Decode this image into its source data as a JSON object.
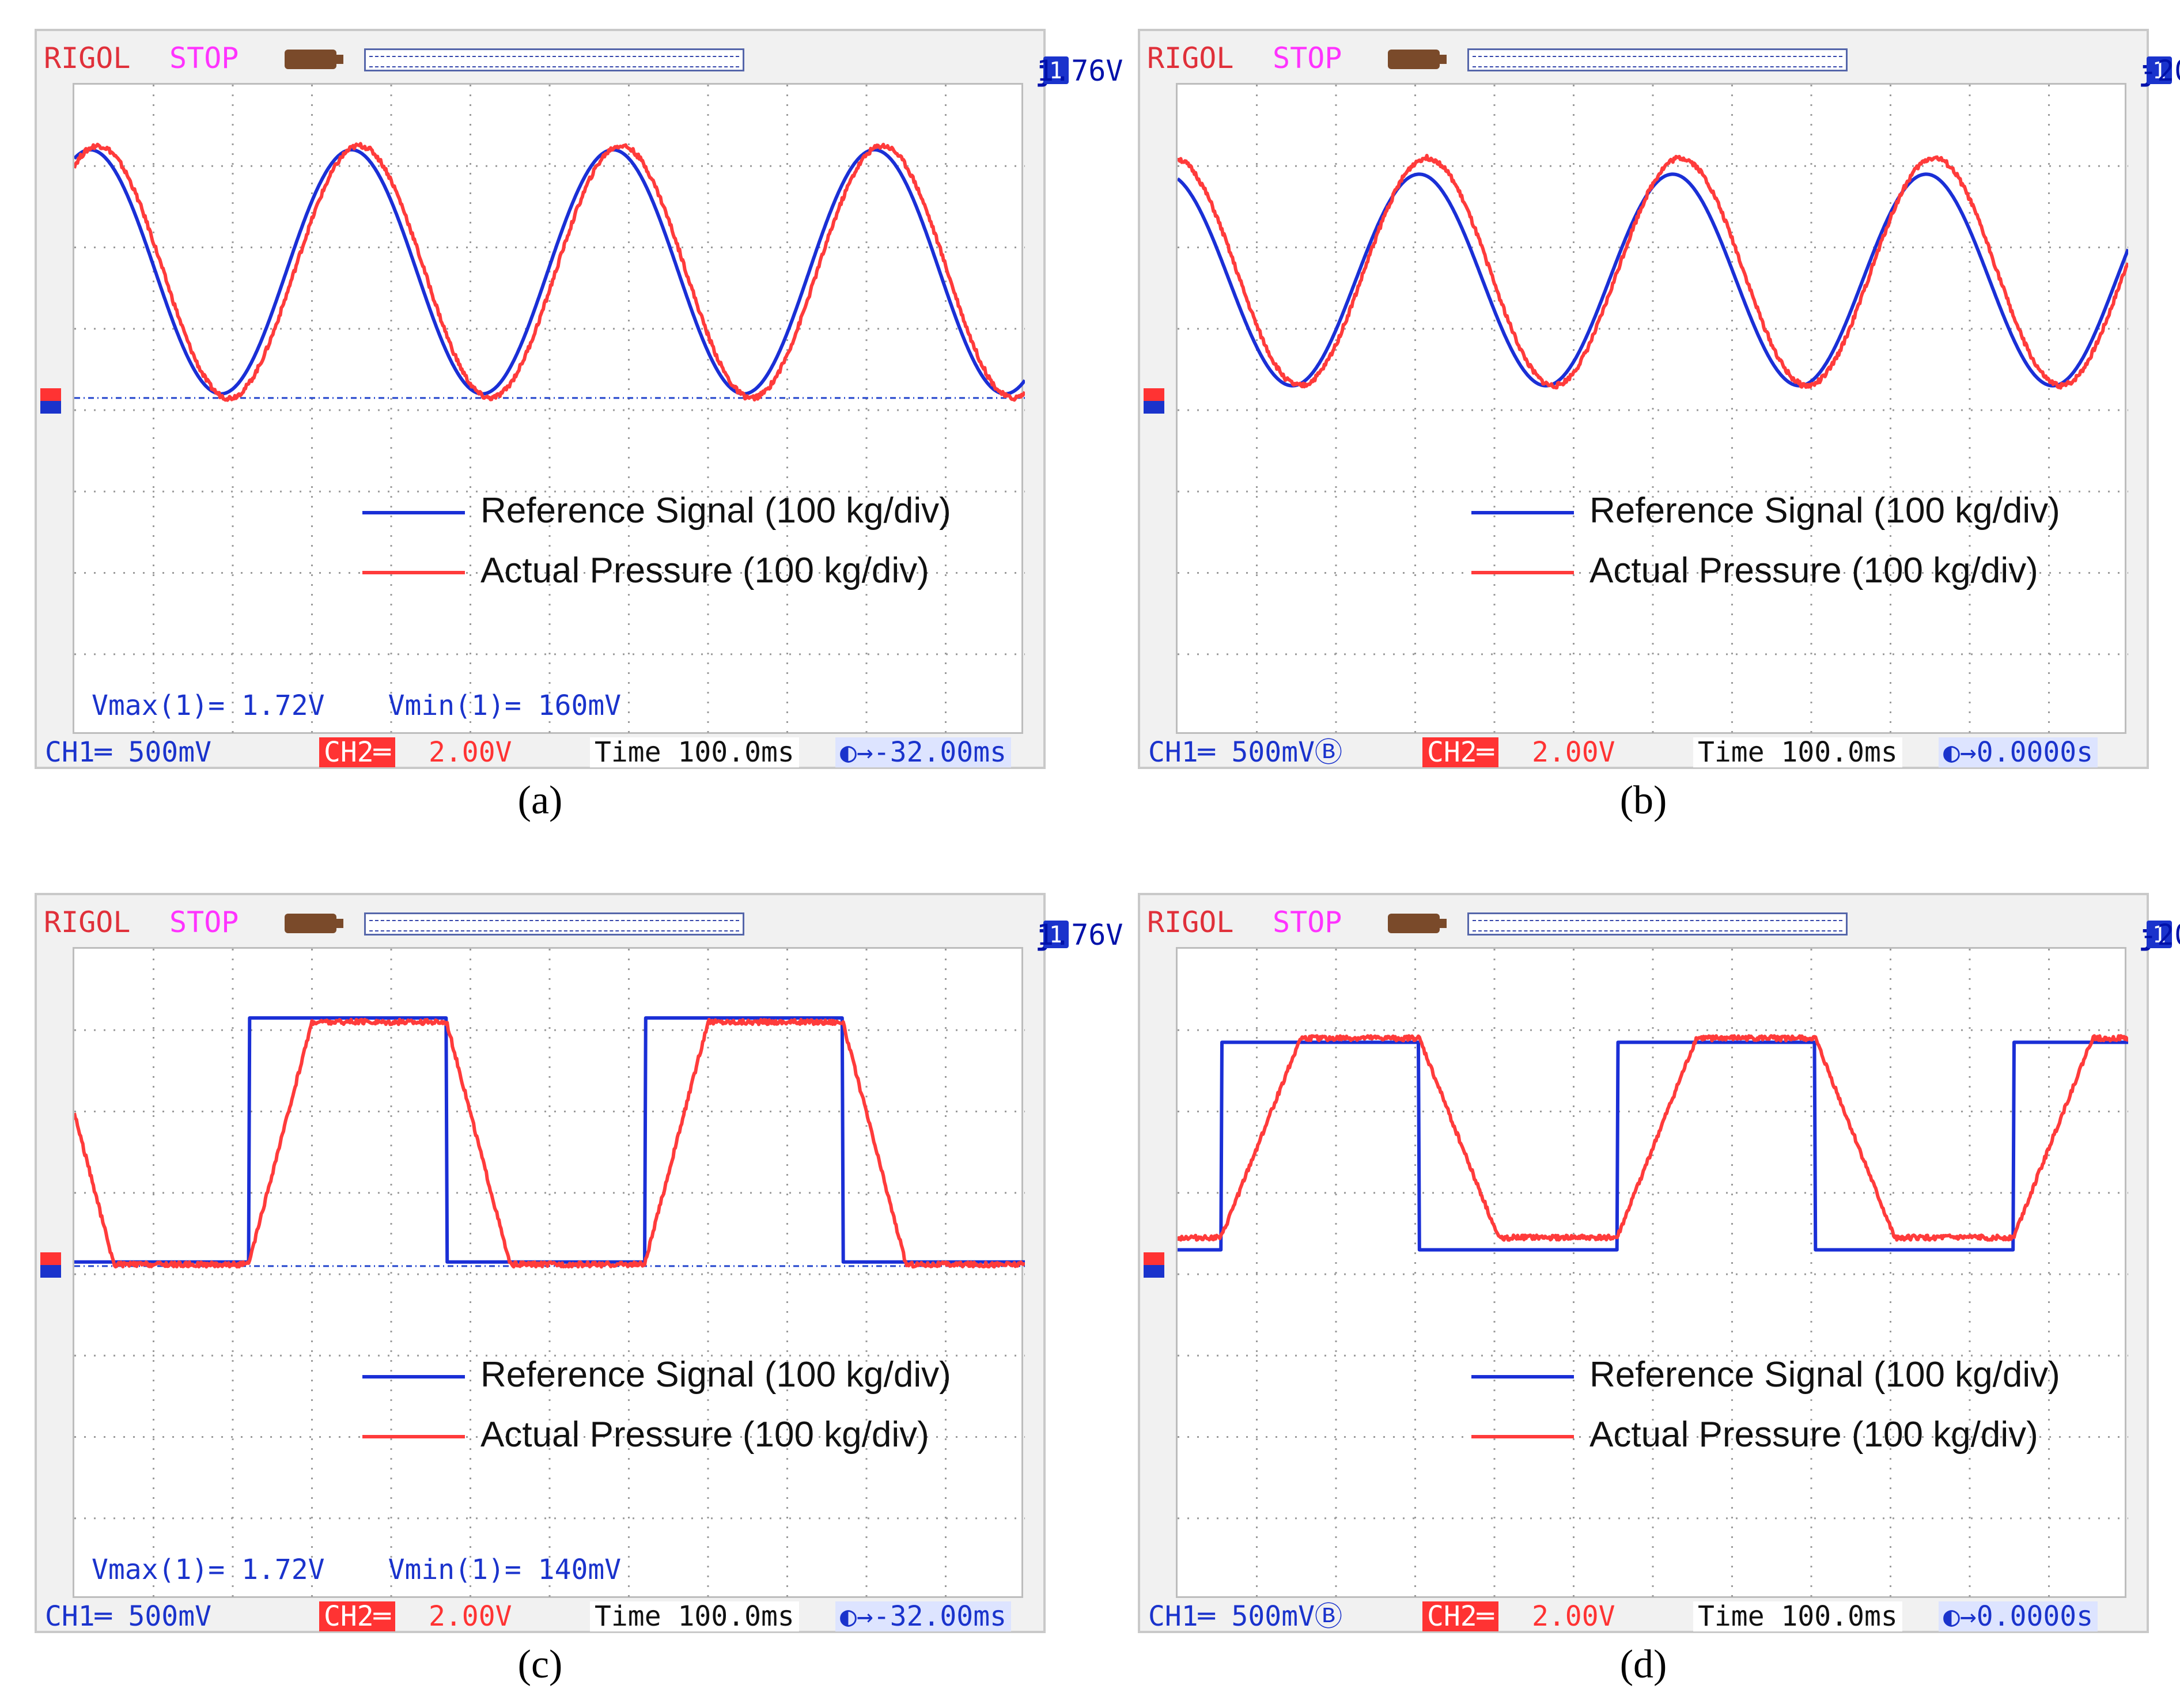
{
  "legend": {
    "reference_label": "Reference Signal (100 kg/div)",
    "actual_label": "Actual Pressure (100 kg/div)",
    "reference_color": "#1a2fd6",
    "actual_color": "#ff3b3b"
  },
  "scope_common": {
    "brand": "RIGOL",
    "state": "STOP",
    "time_label": "Time",
    "time_value": "100.0ms"
  },
  "panels": [
    {
      "caption": "(a)",
      "trig_level": "1.76V",
      "ch1": "CH1═ 500mV",
      "ch2_tag": "CH2═",
      "ch2": "2.00V",
      "time": "Time 100.0ms",
      "offset": "◐→-32.00ms",
      "vmax": "Vmax(1)= 1.72V",
      "vmin": "Vmin(1)= 160mV"
    },
    {
      "caption": "(b)",
      "trig_level": "-20.0mV",
      "ch1": "CH1═ 500mVⒷ",
      "ch2_tag": "CH2═",
      "ch2": "2.00V",
      "time": "Time 100.0ms",
      "offset": "◐→0.0000s",
      "vmax": "",
      "vmin": ""
    },
    {
      "caption": "(c)",
      "trig_level": "1.76V",
      "ch1": "CH1═ 500mV",
      "ch2_tag": "CH2═",
      "ch2": "2.00V",
      "time": "Time 100.0ms",
      "offset": "◐→-32.00ms",
      "vmax": "Vmax(1)= 1.72V",
      "vmin": "Vmin(1)= 140mV"
    },
    {
      "caption": "(d)",
      "trig_level": "-20.0mV",
      "ch1": "CH1═ 500mVⒷ",
      "ch2_tag": "CH2═",
      "ch2": "2.00V",
      "time": "Time 100.0ms",
      "offset": "◐→0.0000s",
      "vmax": "",
      "vmin": ""
    }
  ],
  "chart_data": [
    {
      "type": "line",
      "title": "(a)",
      "xlabel": "Time (100.0 ms/div)",
      "ylabel": "Pressure (100 kg/div)",
      "xlim": [
        0,
        12
      ],
      "ylim": [
        -4,
        4
      ],
      "x_unit": "div",
      "y_unit": "div",
      "series": [
        {
          "name": "Reference Signal",
          "color": "#1a2fd6",
          "waveform": "sine",
          "period_div": 3.3,
          "phase_div": 0.2,
          "low_div": 0.2,
          "high_div": 3.2
        },
        {
          "name": "Actual Pressure",
          "color": "#ff3b3b",
          "waveform": "sine",
          "period_div": 3.3,
          "phase_div": 0.3,
          "low_div": 0.15,
          "high_div": 3.25
        }
      ]
    },
    {
      "type": "line",
      "title": "(b)",
      "xlabel": "Time (100.0 ms/div)",
      "ylabel": "Pressure (100 kg/div)",
      "xlim": [
        0,
        12
      ],
      "ylim": [
        -4,
        4
      ],
      "x_unit": "div",
      "y_unit": "div",
      "series": [
        {
          "name": "Reference Signal",
          "color": "#1a2fd6",
          "waveform": "sine",
          "period_div": 3.2,
          "phase_div": -0.15,
          "low_div": 0.3,
          "high_div": 2.9
        },
        {
          "name": "Actual Pressure",
          "color": "#ff3b3b",
          "waveform": "sine",
          "period_div": 3.2,
          "phase_div": -0.05,
          "low_div": 0.3,
          "high_div": 3.1
        }
      ]
    },
    {
      "type": "line",
      "title": "(c)",
      "xlabel": "Time (100.0 ms/div)",
      "ylabel": "Pressure (100 kg/div)",
      "xlim": [
        0,
        12
      ],
      "ylim": [
        -4,
        4
      ],
      "x_unit": "div",
      "y_unit": "div",
      "series": [
        {
          "name": "Reference Signal",
          "color": "#1a2fd6",
          "waveform": "square",
          "period_div": 5.0,
          "rise_div": 2.2,
          "duty_div": 2.5,
          "low_div": 0.15,
          "high_div": 3.15,
          "ramp_div": 0.0
        },
        {
          "name": "Actual Pressure",
          "color": "#ff3b3b",
          "waveform": "square",
          "period_div": 5.0,
          "rise_div": 2.2,
          "duty_div": 2.5,
          "low_div": 0.12,
          "high_div": 3.1,
          "ramp_div": 0.8
        }
      ]
    },
    {
      "type": "line",
      "title": "(d)",
      "xlabel": "Time (100.0 ms/div)",
      "ylabel": "Pressure (100 kg/div)",
      "xlim": [
        0,
        12
      ],
      "ylim": [
        -4,
        4
      ],
      "x_unit": "div",
      "y_unit": "div",
      "series": [
        {
          "name": "Reference Signal",
          "color": "#1a2fd6",
          "waveform": "square",
          "period_div": 5.0,
          "rise_div": 0.55,
          "duty_div": 2.5,
          "low_div": 0.3,
          "high_div": 2.85,
          "ramp_div": 0.0
        },
        {
          "name": "Actual Pressure",
          "color": "#ff3b3b",
          "waveform": "square",
          "period_div": 5.0,
          "rise_div": 0.55,
          "duty_div": 2.5,
          "low_div": 0.45,
          "high_div": 2.9,
          "ramp_div": 1.0
        }
      ]
    }
  ]
}
